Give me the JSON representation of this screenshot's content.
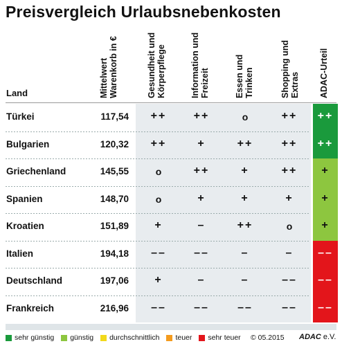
{
  "title": "Preisvergleich Urlaubsnebenkosten",
  "header": {
    "land": "Land",
    "col_price": [
      "Mittelwert",
      "Warenkorb in €"
    ],
    "columns": [
      [
        "Gesundheit und",
        "Körperpflege"
      ],
      [
        "Information und",
        "Freizeit"
      ],
      [
        "Essen und",
        "Trinken"
      ],
      [
        "Shopping und",
        "Extras"
      ],
      [
        "ADAC-Urteil"
      ]
    ]
  },
  "colors": {
    "sehr_guenstig": "#1a9a3c",
    "guenstig": "#8dc63f",
    "durchschnittlich": "#f2d91b",
    "teuer": "#f49b1e",
    "sehr_teuer": "#e3151b"
  },
  "rows": [
    {
      "land": "Türkei",
      "price": "117,54",
      "ratings": [
        "++",
        "++",
        "o",
        "++"
      ],
      "urteil": "++",
      "urteil_level": "sehr_guenstig"
    },
    {
      "land": "Bulgarien",
      "price": "120,32",
      "ratings": [
        "++",
        "+",
        "++",
        "++"
      ],
      "urteil": "++",
      "urteil_level": "sehr_guenstig"
    },
    {
      "land": "Griechenland",
      "price": "145,55",
      "ratings": [
        "o",
        "++",
        "+",
        "++"
      ],
      "urteil": "+",
      "urteil_level": "guenstig"
    },
    {
      "land": "Spanien",
      "price": "148,70",
      "ratings": [
        "o",
        "+",
        "+",
        "+"
      ],
      "urteil": "+",
      "urteil_level": "guenstig"
    },
    {
      "land": "Kroatien",
      "price": "151,89",
      "ratings": [
        "+",
        "–",
        "++",
        "o"
      ],
      "urteil": "+",
      "urteil_level": "guenstig"
    },
    {
      "land": "Italien",
      "price": "194,18",
      "ratings": [
        "––",
        "––",
        "–",
        "–"
      ],
      "urteil": "––",
      "urteil_level": "sehr_teuer"
    },
    {
      "land": "Deutschland",
      "price": "197,06",
      "ratings": [
        "+",
        "–",
        "–",
        "––"
      ],
      "urteil": "––",
      "urteil_level": "sehr_teuer"
    },
    {
      "land": "Frankreich",
      "price": "216,96",
      "ratings": [
        "––",
        "––",
        "––",
        "––"
      ],
      "urteil": "––",
      "urteil_level": "sehr_teuer"
    }
  ],
  "legend": [
    {
      "label": "sehr günstig",
      "level": "sehr_guenstig"
    },
    {
      "label": "günstig",
      "level": "guenstig"
    },
    {
      "label": "durchschnittlich",
      "level": "durchschnittlich"
    },
    {
      "label": "teuer",
      "level": "teuer"
    },
    {
      "label": "sehr teuer",
      "level": "sehr_teuer"
    }
  ],
  "copyright": "© 05.2015",
  "brand": "ADAC",
  "brand_suffix": "e.V."
}
